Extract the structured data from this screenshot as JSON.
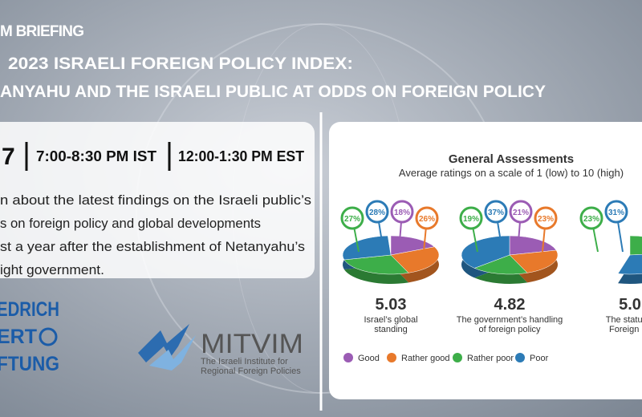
{
  "header": {
    "kicker": "M BRIEFING",
    "title_line1": "2023 ISRAELI FOREIGN POLICY INDEX:",
    "title_line2": "ANYAHU AND THE ISRAELI PUBLIC AT ODDS ON FOREIGN POLICY"
  },
  "event": {
    "date": "7",
    "time_ist": "7:00-8:30 PM IST",
    "time_est": "12:00-1:30 PM EST",
    "description": [
      "n about the latest findings on the Israeli public’s",
      "s on foreign policy and global developments",
      "st a year after the establishment of Netanyahu’s",
      "ight government."
    ]
  },
  "logos": {
    "fes": [
      "EDRICH",
      "ERT",
      "FTUNG"
    ],
    "mitvim": {
      "name": "MITVIM",
      "tagline": [
        "The Israeli Institute for",
        "Regional Foreign Policies"
      ]
    }
  },
  "infographic": {
    "title": "General Assessments",
    "subtitle": "Average ratings on a scale of 1 (low) to 10 (high)",
    "legend": [
      {
        "name": "Good",
        "color": "#9b5cb4"
      },
      {
        "name": "Rather good",
        "color": "#e8792b"
      },
      {
        "name": "Rather poor",
        "color": "#3dae49"
      },
      {
        "name": "Poor",
        "color": "#2c7bb6"
      }
    ],
    "items": [
      {
        "values": [
          18,
          26,
          27,
          28
        ],
        "value_labels": [
          "18%",
          "26%",
          "27%",
          "28%"
        ],
        "score": 5.03,
        "caption": [
          "Israel’s global",
          "standing"
        ]
      },
      {
        "values": [
          21,
          23,
          19,
          37
        ],
        "value_labels": [
          "21%",
          "23%",
          "19%",
          "37%"
        ],
        "score": 4.82,
        "caption": [
          "The government’s handling",
          "of foreign policy"
        ]
      },
      {
        "values": [
          null,
          null,
          23,
          31
        ],
        "value_labels": [
          null,
          null,
          "23%",
          "31%"
        ],
        "score": "5.0",
        "caption": [
          "The status o",
          "Foreign Mi"
        ]
      }
    ]
  }
}
